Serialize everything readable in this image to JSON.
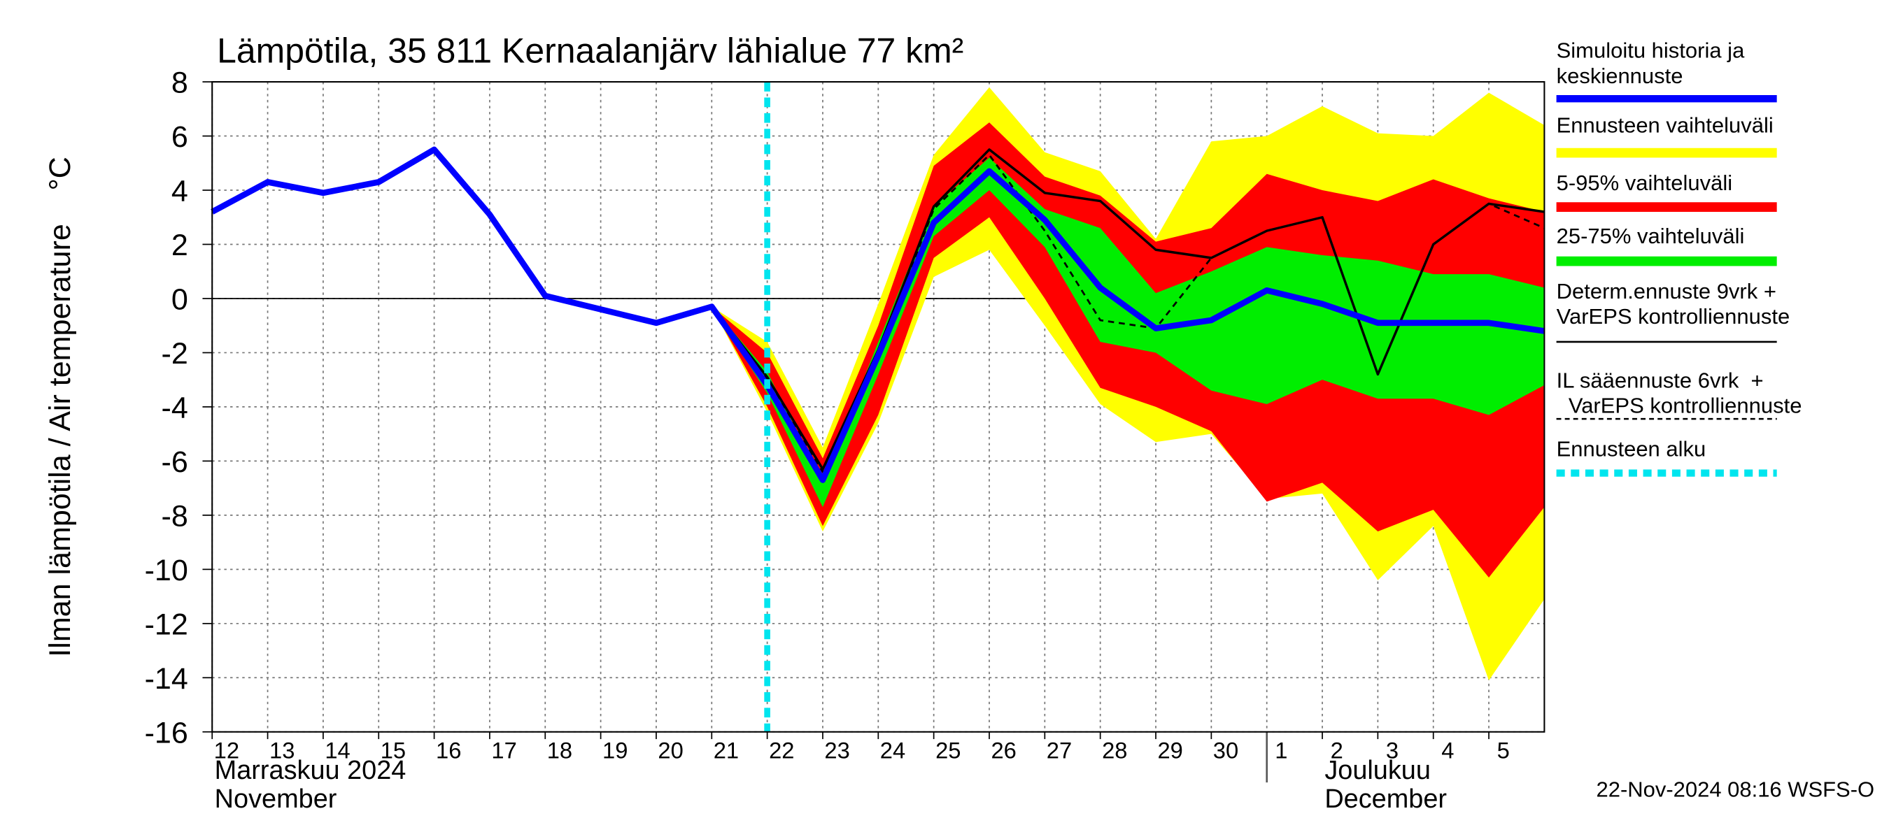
{
  "chart_data": {
    "type": "line",
    "title": "Lämpötila, 35 811 Kernaalanjärv lähialue 77 km²",
    "y_label": "Ilman lämpötila / Air temperature    °C",
    "footer": "22-Nov-2024 08:16 WSFS-O",
    "x": [
      "2024-11-12",
      "2024-11-13",
      "2024-11-14",
      "2024-11-15",
      "2024-11-16",
      "2024-11-17",
      "2024-11-18",
      "2024-11-19",
      "2024-11-20",
      "2024-11-21",
      "2024-11-22",
      "2024-11-23",
      "2024-11-24",
      "2024-11-25",
      "2024-11-26",
      "2024-11-27",
      "2024-11-28",
      "2024-11-29",
      "2024-11-30",
      "2024-12-01",
      "2024-12-02",
      "2024-12-03",
      "2024-12-04",
      "2024-12-05",
      "2024-12-06"
    ],
    "xlim": [
      "2024-11-12",
      "2024-12-06"
    ],
    "xticks": [
      {
        "value": "2024-11-12",
        "label": "12"
      },
      {
        "value": "2024-11-13",
        "label": "13"
      },
      {
        "value": "2024-11-14",
        "label": "14"
      },
      {
        "value": "2024-11-15",
        "label": "15"
      },
      {
        "value": "2024-11-16",
        "label": "16"
      },
      {
        "value": "2024-11-17",
        "label": "17"
      },
      {
        "value": "2024-11-18",
        "label": "18"
      },
      {
        "value": "2024-11-19",
        "label": "19"
      },
      {
        "value": "2024-11-20",
        "label": "20"
      },
      {
        "value": "2024-11-21",
        "label": "21"
      },
      {
        "value": "2024-11-22",
        "label": "22"
      },
      {
        "value": "2024-11-23",
        "label": "23"
      },
      {
        "value": "2024-11-24",
        "label": "24"
      },
      {
        "value": "2024-11-25",
        "label": "25"
      },
      {
        "value": "2024-11-26",
        "label": "26"
      },
      {
        "value": "2024-11-27",
        "label": "27"
      },
      {
        "value": "2024-11-28",
        "label": "28"
      },
      {
        "value": "2024-11-29",
        "label": "29"
      },
      {
        "value": "2024-11-30",
        "label": "30"
      },
      {
        "value": "2024-12-01",
        "label": "1"
      },
      {
        "value": "2024-12-02",
        "label": "2"
      },
      {
        "value": "2024-12-03",
        "label": "3"
      },
      {
        "value": "2024-12-04",
        "label": "4"
      },
      {
        "value": "2024-12-05",
        "label": "5"
      }
    ],
    "month_labels": [
      {
        "value": "2024-11-12",
        "label": "Marraskuu 2024\nNovember"
      },
      {
        "value": "2024-12-01",
        "label": "Joulukuu\nDecember"
      }
    ],
    "ylim": [
      -16,
      8
    ],
    "yticks": [
      8,
      6,
      4,
      2,
      0,
      -2,
      -4,
      -6,
      -8,
      -10,
      -12,
      -14,
      -16
    ],
    "grid": true,
    "bands": [
      {
        "name": "Ennusteen vaihteluväli",
        "color": "#ffff00",
        "upper": [
          null,
          null,
          null,
          null,
          null,
          null,
          null,
          null,
          null,
          -0.3,
          -1.6,
          -5.5,
          -0.2,
          5.3,
          7.8,
          5.4,
          4.7,
          2.2,
          5.8,
          6.0,
          7.1,
          6.1,
          6.0,
          7.6,
          6.4
        ],
        "lower": [
          null,
          null,
          null,
          null,
          null,
          null,
          null,
          null,
          null,
          -0.3,
          -4.2,
          -8.6,
          -4.6,
          0.8,
          1.8,
          -1.0,
          -3.9,
          -5.3,
          -5.0,
          -7.4,
          -7.2,
          -10.4,
          -8.4,
          -14.1,
          -11.1
        ]
      },
      {
        "name": "5-95% vaihteluväli",
        "color": "#ff0000",
        "upper": [
          null,
          null,
          null,
          null,
          null,
          null,
          null,
          null,
          null,
          -0.3,
          -2.0,
          -5.9,
          -1.0,
          4.9,
          6.5,
          4.5,
          3.8,
          2.1,
          2.6,
          4.6,
          4.0,
          3.6,
          4.4,
          3.7,
          3.2
        ],
        "lower": [
          null,
          null,
          null,
          null,
          null,
          null,
          null,
          null,
          null,
          -0.3,
          -4.0,
          -8.4,
          -4.3,
          1.5,
          3.0,
          0.0,
          -3.3,
          -4.0,
          -4.9,
          -7.5,
          -6.8,
          -8.6,
          -7.8,
          -10.3,
          -7.7
        ]
      },
      {
        "name": "25-75% vaihteluväli",
        "color": "#00ee00",
        "upper": [
          null,
          null,
          null,
          null,
          null,
          null,
          null,
          null,
          null,
          -0.3,
          -2.7,
          -6.8,
          -1.6,
          3.4,
          5.2,
          3.3,
          2.6,
          0.2,
          1.0,
          1.9,
          1.6,
          1.4,
          0.9,
          0.9,
          0.4
        ],
        "lower": [
          null,
          null,
          null,
          null,
          null,
          null,
          null,
          null,
          null,
          -0.3,
          -3.5,
          -7.7,
          -2.8,
          2.3,
          4.0,
          1.9,
          -1.6,
          -2.0,
          -3.4,
          -3.9,
          -3.0,
          -3.7,
          -3.7,
          -4.3,
          -3.2
        ]
      }
    ],
    "series": [
      {
        "name": "Simuloitu historia ja\nkeskiennuste",
        "color": "#0000ff",
        "values": [
          3.2,
          4.3,
          3.9,
          4.3,
          5.5,
          3.1,
          0.1,
          -0.4,
          -0.9,
          -0.3,
          -3.2,
          -6.7,
          -2.1,
          2.8,
          4.7,
          2.9,
          0.4,
          -1.1,
          -0.8,
          0.3,
          -0.2,
          -0.9,
          -0.9,
          -0.9,
          -1.2
        ]
      },
      {
        "name": "Determ.ennuste 9vrk +\nVarEPS kontrolliennuste",
        "color": "#000000",
        "values": [
          null,
          null,
          null,
          null,
          null,
          null,
          null,
          null,
          null,
          -0.3,
          -2.9,
          -6.3,
          -1.9,
          3.4,
          5.5,
          3.9,
          3.6,
          1.8,
          1.5,
          2.5,
          3.0,
          -2.8,
          2.0,
          3.5,
          3.2
        ]
      },
      {
        "name": "IL sääennuste 6vrk  +\n  VarEPS kontrolliennuste",
        "color": "#000000",
        "line_style": "dashed",
        "values": [
          null,
          null,
          null,
          null,
          null,
          null,
          null,
          null,
          null,
          -0.3,
          -3.0,
          -6.4,
          -2.0,
          3.3,
          5.3,
          2.5,
          -0.8,
          -1.1,
          1.5,
          2.5,
          3.0,
          -2.8,
          2.0,
          3.5,
          2.6
        ]
      }
    ],
    "forecast_start": {
      "name": "Ennusteen alku",
      "color": "#00e5ee",
      "x": "2024-11-22"
    }
  }
}
